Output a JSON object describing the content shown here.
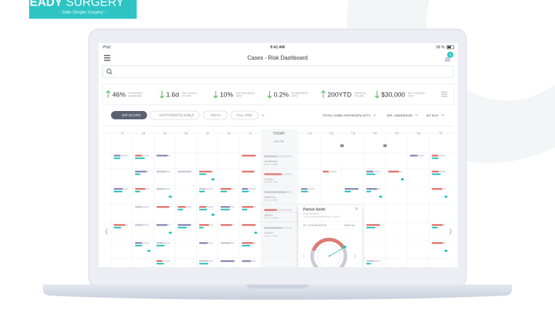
{
  "brand": {
    "name_bold": "READY",
    "name_light": "SURGERY",
    "tagline": "- Safe Simple Surgery -"
  },
  "status_bar": {
    "device": "iPad",
    "time": "9:41 AM",
    "battery": "58 %"
  },
  "nav": {
    "title": "Cases - Risk Dashboard",
    "badge": "5"
  },
  "stats": [
    {
      "value": "46%",
      "label": [
        "OUTPATIENT",
        "SURGERIES"
      ],
      "trend": "up"
    },
    {
      "value": "1.6d",
      "label": [
        "AVG. LENGTH",
        "OF STAY"
      ],
      "trend": "down"
    },
    {
      "value": "10%",
      "label": [
        "SNF DISCHARGE",
        "RATE"
      ],
      "trend": "down"
    },
    {
      "value": "0.2%",
      "label": [
        "READMISSION",
        "RATE"
      ],
      "trend": "down"
    },
    {
      "value": "200YTD",
      "label": [
        "SURGICAL",
        "VOLUME"
      ],
      "trend": "up"
    },
    {
      "value": "$30,000",
      "label": [
        "AVG. SURGERY",
        "COST"
      ],
      "trend": "down"
    }
  ],
  "filters": {
    "tags": [
      "SNF-BOUND",
      "OUTPATIENT-ELIGIBLE",
      "ASA>3",
      "FALL RISK"
    ],
    "dropdowns": [
      "TOTAL KNEE ARTHROPLASTY",
      "DR. ANDERSON",
      "BY DAY"
    ]
  },
  "timeline": {
    "before": [
      "-7d",
      "-6d",
      "-5d",
      "-4d",
      "-3d",
      "-2d",
      "-1d"
    ],
    "today": "TODAY",
    "after": [
      "+1d",
      "+2d",
      "+3d",
      "+4d",
      "+5d",
      "+6d",
      "+7d"
    ],
    "date": "Jan 17th"
  },
  "patients": [
    {
      "name": "JOHNSON",
      "detail": "FULL 2.3 NPR"
    },
    {
      "name": "TYLER",
      "detail": "PARTIAL NPR"
    },
    {
      "name": "GENTILE",
      "detail": "FULL 2.4 NPR"
    },
    {
      "name": "SMITH",
      "detail": "FULL 2.4 NPR"
    },
    {
      "name": "LYNCH",
      "detail": "FULL 2.3 NPR"
    }
  ],
  "popup": {
    "name": "Patrick Smith",
    "dob": "DOB 03/21/1958",
    "procedure": "TOTAL KNEE ARTHROPLASTY (LEFT)",
    "doctor": "DR. JOHN ANDERSON",
    "day": "KNEE DAY"
  }
}
